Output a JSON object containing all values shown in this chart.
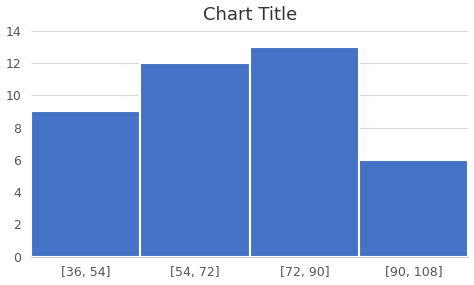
{
  "title": "Chart Title",
  "categories": [
    "[36, 54]",
    "[54, 72]",
    "[72, 90]",
    "[90, 108]"
  ],
  "values": [
    9,
    12,
    13,
    6
  ],
  "bar_color": "#4472C4",
  "bar_edge_color": "white",
  "ylim": [
    0,
    14
  ],
  "yticks": [
    0,
    2,
    4,
    6,
    8,
    10,
    12,
    14
  ],
  "background_color": "#ffffff",
  "grid_color": "#d9d9d9",
  "title_fontsize": 13,
  "tick_fontsize": 9
}
